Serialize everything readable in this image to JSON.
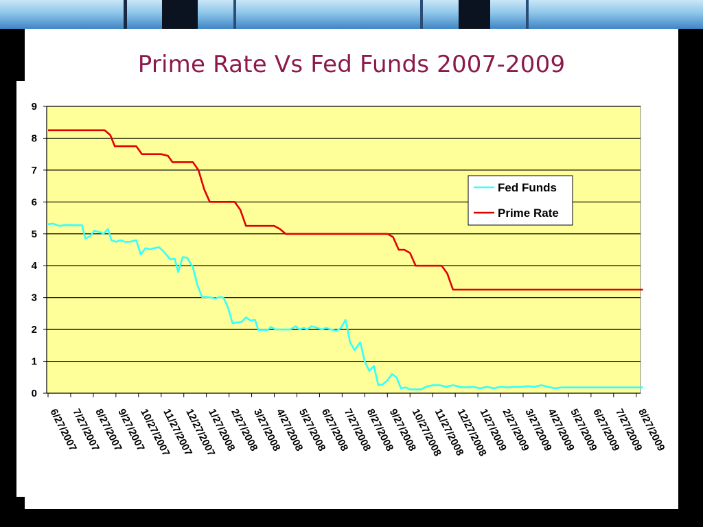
{
  "slide": {
    "title": "Prime Rate Vs Fed Funds 2007-2009"
  },
  "colors": {
    "plot_background": "#ffff99",
    "fed_funds": "#33ffff",
    "prime_rate": "#e00000",
    "title": "#8b1a4a"
  },
  "chart_data": {
    "type": "line",
    "title": "",
    "xlabel": "",
    "ylabel": "",
    "ylim": [
      0,
      9
    ],
    "yticks": [
      0,
      1,
      2,
      3,
      4,
      5,
      6,
      7,
      8,
      9
    ],
    "grid": "horizontal",
    "legend_position": "right",
    "x_ticks": [
      "6/27/2007",
      "7/27/2007",
      "8/27/2007",
      "9/27/2007",
      "10/27/2007",
      "11/27/2007",
      "12/27/2007",
      "1/27/2008",
      "2/27/2008",
      "3/27/2008",
      "4/27/2008",
      "5/27/2008",
      "6/27/2008",
      "7/27/2008",
      "8/27/2008",
      "9/27/2008",
      "10/27/2008",
      "11/27/2008",
      "12/27/2008",
      "1/27/2009",
      "2/27/2009",
      "3/27/2009",
      "4/27/2009",
      "5/27/2009",
      "6/27/2009",
      "7/27/2009",
      "8/27/2009"
    ],
    "series": [
      {
        "name": "Fed Funds",
        "points": [
          [
            0,
            5.3
          ],
          [
            0.2,
            5.32
          ],
          [
            0.5,
            5.25
          ],
          [
            0.8,
            5.28
          ],
          [
            1.0,
            5.27
          ],
          [
            1.3,
            5.27
          ],
          [
            1.5,
            5.27
          ],
          [
            1.65,
            4.85
          ],
          [
            1.85,
            4.92
          ],
          [
            2.05,
            5.1
          ],
          [
            2.3,
            5.05
          ],
          [
            2.45,
            5.0
          ],
          [
            2.65,
            5.15
          ],
          [
            2.8,
            4.8
          ],
          [
            3.0,
            4.75
          ],
          [
            3.2,
            4.8
          ],
          [
            3.4,
            4.75
          ],
          [
            3.6,
            4.75
          ],
          [
            3.9,
            4.8
          ],
          [
            4.1,
            4.35
          ],
          [
            4.3,
            4.55
          ],
          [
            4.5,
            4.52
          ],
          [
            4.7,
            4.55
          ],
          [
            4.9,
            4.58
          ],
          [
            5.1,
            4.45
          ],
          [
            5.4,
            4.2
          ],
          [
            5.6,
            4.22
          ],
          [
            5.75,
            3.8
          ],
          [
            5.95,
            4.27
          ],
          [
            6.15,
            4.25
          ],
          [
            6.4,
            3.95
          ],
          [
            6.6,
            3.4
          ],
          [
            6.8,
            3.02
          ],
          [
            7.0,
            3.02
          ],
          [
            7.2,
            3.0
          ],
          [
            7.4,
            2.97
          ],
          [
            7.6,
            3.02
          ],
          [
            7.75,
            3.0
          ],
          [
            7.95,
            2.7
          ],
          [
            8.15,
            2.2
          ],
          [
            8.35,
            2.22
          ],
          [
            8.55,
            2.23
          ],
          [
            8.75,
            2.38
          ],
          [
            8.95,
            2.28
          ],
          [
            9.15,
            2.3
          ],
          [
            9.3,
            1.98
          ],
          [
            9.5,
            1.98
          ],
          [
            9.7,
            1.98
          ],
          [
            9.85,
            2.08
          ],
          [
            10.05,
            2.0
          ],
          [
            10.3,
            2.0
          ],
          [
            10.55,
            2.0
          ],
          [
            10.7,
            2.0
          ],
          [
            10.95,
            2.1
          ],
          [
            11.1,
            2.0
          ],
          [
            11.3,
            2.05
          ],
          [
            11.45,
            2.0
          ],
          [
            11.65,
            2.1
          ],
          [
            11.9,
            2.05
          ],
          [
            12.1,
            2.0
          ],
          [
            12.3,
            2.05
          ],
          [
            12.5,
            2.0
          ],
          [
            12.75,
            1.95
          ],
          [
            12.95,
            2.05
          ],
          [
            13.15,
            2.3
          ],
          [
            13.35,
            1.6
          ],
          [
            13.55,
            1.35
          ],
          [
            13.8,
            1.6
          ],
          [
            14.0,
            1.0
          ],
          [
            14.2,
            0.7
          ],
          [
            14.4,
            0.85
          ],
          [
            14.6,
            0.25
          ],
          [
            14.8,
            0.28
          ],
          [
            15.0,
            0.4
          ],
          [
            15.2,
            0.6
          ],
          [
            15.4,
            0.5
          ],
          [
            15.6,
            0.15
          ],
          [
            15.8,
            0.18
          ],
          [
            16.0,
            0.12
          ],
          [
            16.2,
            0.12
          ],
          [
            16.5,
            0.12
          ],
          [
            16.7,
            0.2
          ],
          [
            17.0,
            0.25
          ],
          [
            17.3,
            0.25
          ],
          [
            17.6,
            0.2
          ],
          [
            17.9,
            0.25
          ],
          [
            18.2,
            0.2
          ],
          [
            18.5,
            0.18
          ],
          [
            18.8,
            0.2
          ],
          [
            19.1,
            0.15
          ],
          [
            19.4,
            0.2
          ],
          [
            19.7,
            0.15
          ],
          [
            20.0,
            0.2
          ],
          [
            20.3,
            0.18
          ],
          [
            20.6,
            0.2
          ],
          [
            20.9,
            0.2
          ],
          [
            21.2,
            0.22
          ],
          [
            21.5,
            0.2
          ],
          [
            21.8,
            0.25
          ],
          [
            22.1,
            0.2
          ],
          [
            22.4,
            0.15
          ],
          [
            22.7,
            0.18
          ],
          [
            23.0,
            0.18
          ],
          [
            23.3,
            0.18
          ],
          [
            23.6,
            0.18
          ],
          [
            23.9,
            0.18
          ],
          [
            24.2,
            0.18
          ],
          [
            24.5,
            0.18
          ],
          [
            24.8,
            0.18
          ],
          [
            25.1,
            0.18
          ],
          [
            25.4,
            0.18
          ],
          [
            25.7,
            0.18
          ],
          [
            26.0,
            0.18
          ],
          [
            26.3,
            0.18
          ]
        ]
      },
      {
        "name": "Prime Rate",
        "points": [
          [
            0,
            8.25
          ],
          [
            2.5,
            8.25
          ],
          [
            2.75,
            8.1
          ],
          [
            2.95,
            7.75
          ],
          [
            3.9,
            7.75
          ],
          [
            4.15,
            7.5
          ],
          [
            5.0,
            7.5
          ],
          [
            5.3,
            7.45
          ],
          [
            5.5,
            7.25
          ],
          [
            6.4,
            7.25
          ],
          [
            6.65,
            7.0
          ],
          [
            6.9,
            6.4
          ],
          [
            7.15,
            6.0
          ],
          [
            8.25,
            6.0
          ],
          [
            8.5,
            5.75
          ],
          [
            8.75,
            5.25
          ],
          [
            10.0,
            5.25
          ],
          [
            10.25,
            5.15
          ],
          [
            10.5,
            5.0
          ],
          [
            15.0,
            5.0
          ],
          [
            15.25,
            4.9
          ],
          [
            15.5,
            4.5
          ],
          [
            15.75,
            4.5
          ],
          [
            16.0,
            4.4
          ],
          [
            16.25,
            4.0
          ],
          [
            17.4,
            4.0
          ],
          [
            17.65,
            3.75
          ],
          [
            17.9,
            3.25
          ],
          [
            26.3,
            3.25
          ]
        ]
      }
    ]
  }
}
